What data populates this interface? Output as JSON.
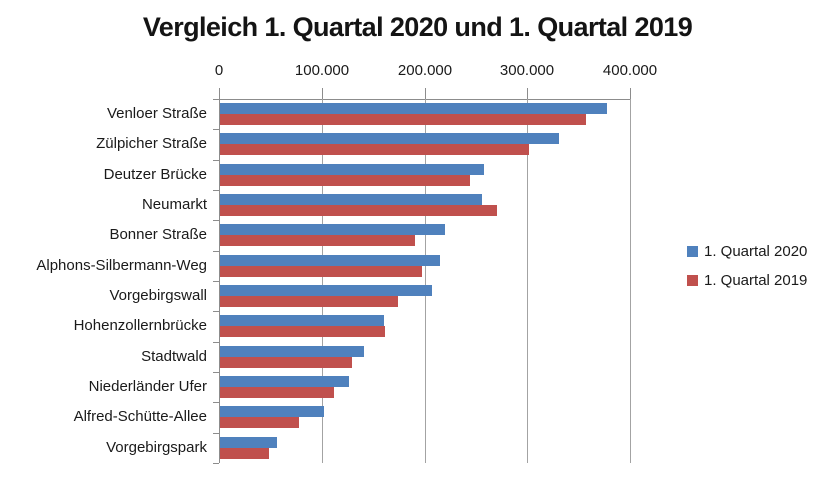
{
  "title": "Vergleich 1. Quartal 2020 und 1. Quartal 2019",
  "chart_data": {
    "type": "bar",
    "orientation": "horizontal",
    "title": "Vergleich 1. Quartal 2020 und 1. Quartal 2019",
    "categories": [
      "Venloer Straße",
      "Zülpicher Straße",
      "Deutzer Brücke",
      "Neumarkt",
      "Bonner Straße",
      "Alphons-Silbermann-Weg",
      "Vorgebirgswall",
      "Hohenzollernbrücke",
      "Stadtwald",
      "Niederländer Ufer",
      "Alfred-Schütte-Allee",
      "Vorgebirgspark"
    ],
    "series": [
      {
        "name": "1. Quartal 2020",
        "color": "#4F81BD",
        "values": [
          377000,
          330000,
          257000,
          255000,
          219000,
          214000,
          206000,
          160000,
          140000,
          126000,
          101000,
          55000
        ]
      },
      {
        "name": "1. Quartal 2019",
        "color": "#C0504D",
        "values": [
          356000,
          301000,
          243000,
          270000,
          190000,
          197000,
          173000,
          161000,
          128000,
          111000,
          77000,
          48000
        ]
      }
    ],
    "x_axis": {
      "position": "top",
      "min": 0,
      "max": 400000,
      "tick_interval": 100000,
      "tick_labels": [
        "0",
        "100.000",
        "200.000",
        "300.000",
        "400.000"
      ]
    },
    "grid": true,
    "legend_position": "right"
  }
}
